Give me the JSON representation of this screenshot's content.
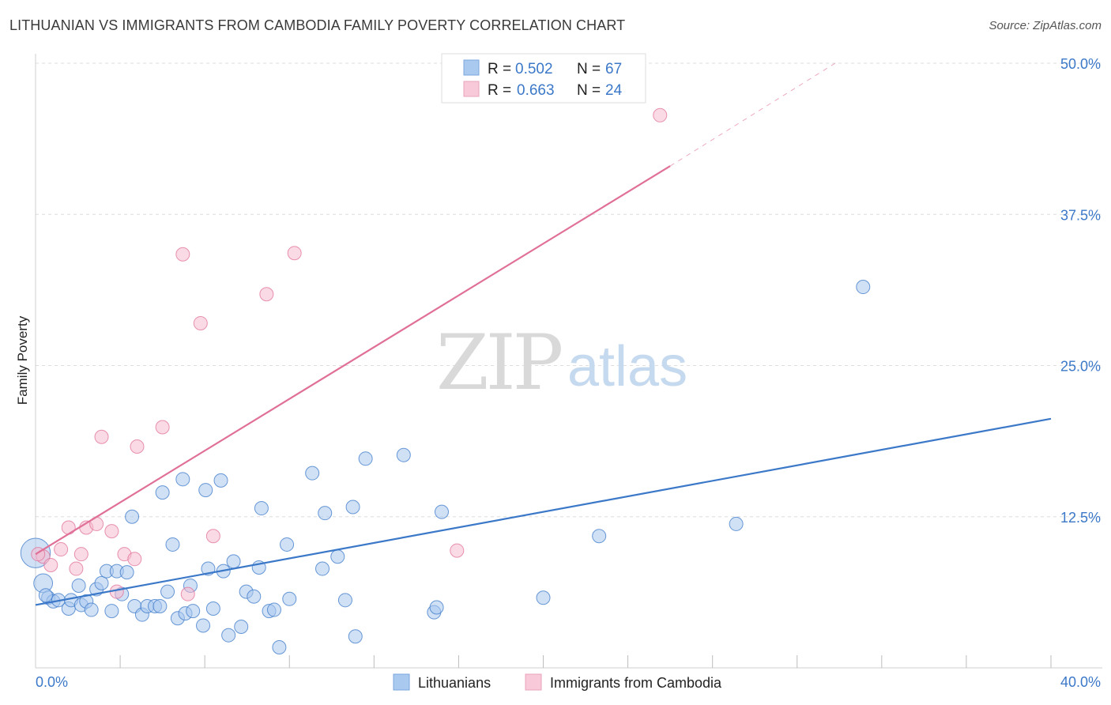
{
  "header": {
    "title": "LITHUANIAN VS IMMIGRANTS FROM CAMBODIA FAMILY POVERTY CORRELATION CHART",
    "source": "Source: ZipAtlas.com"
  },
  "watermark": {
    "zip": "ZIP",
    "atlas": "atlas"
  },
  "legend": {
    "r_label": "R =",
    "n_label": "N =",
    "rows": [
      {
        "r": "0.502",
        "n": "67"
      },
      {
        "r": "0.663",
        "n": "24"
      }
    ]
  },
  "chart_data": {
    "type": "scatter",
    "title": "LITHUANIAN VS IMMIGRANTS FROM CAMBODIA FAMILY POVERTY CORRELATION CHART",
    "xlabel": "",
    "ylabel": "Family Poverty",
    "xlim": [
      0,
      40
    ],
    "ylim": [
      0,
      50
    ],
    "x_tick_labels": [
      "0.0%",
      "40.0%"
    ],
    "y_ticks": [
      12.5,
      25.0,
      37.5,
      50.0
    ],
    "y_tick_labels": [
      "12.5%",
      "25.0%",
      "37.5%",
      "50.0%"
    ],
    "grid": true,
    "legend_position": "bottom-center",
    "series": [
      {
        "name": "Lithuanians",
        "color": "#3b78c8",
        "fill": "#a9c9ef",
        "r": 0.502,
        "n": 67,
        "trend": {
          "x0": 0,
          "y0": 5.2,
          "x1": 40,
          "y1": 20.6,
          "dash_after": null
        },
        "points": [
          [
            0.0,
            9.5,
            22
          ],
          [
            0.3,
            7.0,
            14
          ],
          [
            0.5,
            5.8,
            10
          ],
          [
            0.7,
            5.5,
            10
          ],
          [
            0.9,
            5.6,
            10
          ],
          [
            1.3,
            4.9,
            10
          ],
          [
            1.4,
            5.6,
            10
          ],
          [
            1.7,
            6.8,
            10
          ],
          [
            1.8,
            5.2,
            10
          ],
          [
            2.0,
            5.5,
            10
          ],
          [
            2.2,
            4.8,
            10
          ],
          [
            2.4,
            6.5,
            10
          ],
          [
            2.6,
            7.0,
            10
          ],
          [
            2.8,
            8.0,
            10
          ],
          [
            3.0,
            4.7,
            10
          ],
          [
            3.2,
            8.0,
            10
          ],
          [
            3.4,
            6.1,
            10
          ],
          [
            3.6,
            7.9,
            10
          ],
          [
            3.8,
            12.5,
            10
          ],
          [
            3.9,
            5.1,
            10
          ],
          [
            4.2,
            4.4,
            10
          ],
          [
            4.4,
            5.1,
            10
          ],
          [
            4.7,
            5.1,
            10
          ],
          [
            4.9,
            5.1,
            10
          ],
          [
            5.0,
            14.5,
            10
          ],
          [
            5.2,
            6.3,
            10
          ],
          [
            5.4,
            10.2,
            10
          ],
          [
            5.6,
            4.1,
            10
          ],
          [
            5.8,
            15.6,
            10
          ],
          [
            5.9,
            4.5,
            10
          ],
          [
            6.1,
            6.8,
            10
          ],
          [
            6.2,
            4.7,
            10
          ],
          [
            6.6,
            3.5,
            10
          ],
          [
            6.8,
            8.2,
            10
          ],
          [
            6.7,
            14.7,
            10
          ],
          [
            7.0,
            4.9,
            10
          ],
          [
            7.3,
            15.5,
            10
          ],
          [
            7.4,
            8.0,
            10
          ],
          [
            7.6,
            2.7,
            10
          ],
          [
            7.8,
            8.8,
            10
          ],
          [
            8.1,
            3.4,
            10
          ],
          [
            8.3,
            6.3,
            10
          ],
          [
            8.6,
            5.9,
            10
          ],
          [
            8.8,
            8.3,
            10
          ],
          [
            8.9,
            13.2,
            10
          ],
          [
            9.2,
            4.7,
            10
          ],
          [
            9.4,
            4.8,
            10
          ],
          [
            9.6,
            1.7,
            10
          ],
          [
            9.9,
            10.2,
            10
          ],
          [
            10.0,
            5.7,
            10
          ],
          [
            10.9,
            16.1,
            10
          ],
          [
            11.3,
            8.2,
            10
          ],
          [
            11.4,
            12.8,
            10
          ],
          [
            11.9,
            9.2,
            10
          ],
          [
            12.2,
            5.6,
            10
          ],
          [
            12.5,
            13.3,
            10
          ],
          [
            12.6,
            2.6,
            10
          ],
          [
            13.0,
            17.3,
            10
          ],
          [
            14.5,
            17.6,
            10
          ],
          [
            15.7,
            4.6,
            10
          ],
          [
            15.8,
            5.0,
            10
          ],
          [
            16.0,
            12.9,
            10
          ],
          [
            20.0,
            5.8,
            10
          ],
          [
            22.2,
            10.9,
            10
          ],
          [
            27.6,
            11.9,
            10
          ],
          [
            32.6,
            31.5,
            10
          ],
          [
            0.4,
            6.0,
            10
          ]
        ]
      },
      {
        "name": "Immigrants from Cambodia",
        "color": "#e07098",
        "fill": "#f5bccf",
        "r": 0.663,
        "n": 24,
        "trend": {
          "x0": 0,
          "y0": 9.4,
          "x1": 25.0,
          "y1": 41.5,
          "dash_to_x": 31.5,
          "dash_to_y": 50.0
        },
        "points": [
          [
            0.3,
            9.2,
            10
          ],
          [
            0.6,
            8.5,
            10
          ],
          [
            1.0,
            9.8,
            10
          ],
          [
            1.3,
            11.6,
            10
          ],
          [
            1.6,
            8.2,
            10
          ],
          [
            1.8,
            9.4,
            10
          ],
          [
            2.0,
            11.6,
            10
          ],
          [
            2.4,
            11.9,
            10
          ],
          [
            2.6,
            19.1,
            10
          ],
          [
            3.0,
            11.3,
            10
          ],
          [
            3.2,
            6.3,
            10
          ],
          [
            3.5,
            9.4,
            10
          ],
          [
            3.9,
            9.0,
            10
          ],
          [
            4.0,
            18.3,
            10
          ],
          [
            5.0,
            19.9,
            10
          ],
          [
            5.8,
            34.2,
            10
          ],
          [
            6.0,
            6.1,
            10
          ],
          [
            6.5,
            28.5,
            10
          ],
          [
            7.0,
            10.9,
            10
          ],
          [
            9.1,
            30.9,
            10
          ],
          [
            10.2,
            34.3,
            10
          ],
          [
            16.6,
            9.7,
            10
          ],
          [
            24.6,
            45.7,
            10
          ],
          [
            0.1,
            9.4,
            10
          ]
        ]
      }
    ]
  },
  "bottom_legend": {
    "items": [
      {
        "label": "Lithuanians"
      },
      {
        "label": "Immigrants from Cambodia"
      }
    ]
  }
}
